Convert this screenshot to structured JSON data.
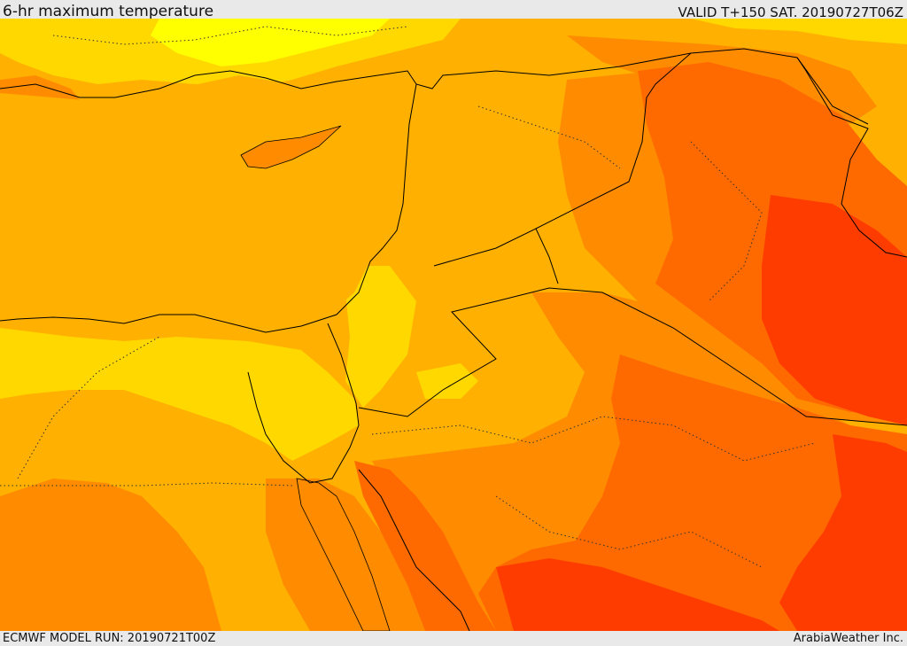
{
  "header": {
    "title": "6-hr maximum temperature",
    "valid_time": "VALID T+150 SAT. 20190727T06Z"
  },
  "footer": {
    "model_run": "ECMWF MODEL RUN: 20190721T00Z",
    "credit": "ArabiaWeather Inc."
  },
  "palette": {
    "bright_yellow": "#ffff00",
    "yellow": "#ffd800",
    "gold": "#ffb000",
    "orange": "#ff8c00",
    "dark_orange": "#ff6a00",
    "red_orange": "#ff3c00",
    "border": "#000000"
  }
}
